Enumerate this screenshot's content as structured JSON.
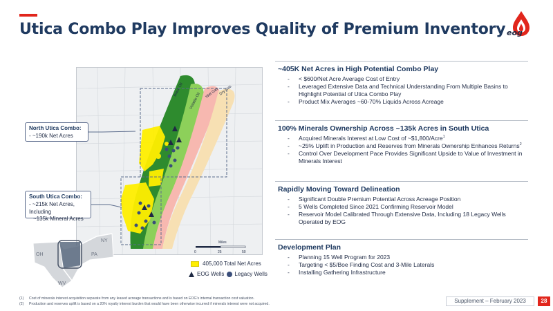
{
  "header": {
    "title": "Utica Combo Play Improves Quality of Premium Inventory",
    "logo_text": "eog",
    "logo_icon": "eog-drop-flame-icon",
    "accent_color": "#e1261c"
  },
  "map": {
    "window_labels": [
      "Black Oil",
      "Volatile Oil",
      "Wet Gas",
      "Dry Gas"
    ],
    "scale_label": "Miles",
    "scale_ticks": [
      "0",
      "25",
      "50"
    ],
    "north_callout": {
      "title": "North Utica Combo:",
      "line1": "- ~190k Net Acres"
    },
    "south_callout": {
      "title": "South Utica Combo:",
      "line1": "- ~215k Net Acres, Including",
      "line2": "~135k Mineral Acres"
    },
    "locator_states": [
      "NY",
      "PA",
      "OH",
      "WV"
    ],
    "colors": {
      "black_oil": "#2e8b2e",
      "volatile_oil": "#8dd05a",
      "wet_gas": "#f7b8b0",
      "dry_gas": "#f7e0b3",
      "acreage": "#ffef00"
    }
  },
  "legend": {
    "acres_label": "405,000 Total Net Acres",
    "eog_wells_label": "EOG Wells",
    "legacy_wells_label": "Legacy Wells"
  },
  "sections": [
    {
      "heading": "~405K Net Acres in High Potential Combo Play",
      "bullets": [
        "< $600/Net Acre Average Cost of Entry",
        "Leveraged Extensive Data and Technical Understanding From Multiple Basins to Highlight Potential of Utica Combo Play",
        "Product Mix Averages ~60-70% Liquids Across Acreage"
      ]
    },
    {
      "heading": "100% Minerals Ownership Across ~135k Acres in South Utica",
      "bullets": [
        "Acquired Minerals Interest at Low Cost of ~$1,800/Acre",
        "~25% Uplift in Production and Reserves from Minerals Ownership Enhances Returns",
        "Control Over Development Pace Provides Significant Upside to Value of Investment in Minerals Interest"
      ],
      "superscripts": [
        "1",
        "2"
      ]
    },
    {
      "heading": "Rapidly Moving Toward Delineation",
      "bullets": [
        "Significant Double Premium Potential Across Acreage Position",
        "5 Wells Completed Since 2021 Confirming Reservoir Model",
        "Reservoir Model Calibrated Through Extensive Data, Including 18 Legacy Wells Operated by EOG"
      ]
    },
    {
      "heading": "Development Plan",
      "bullets": [
        "Planning 15 Well Program for 2023",
        "Targeting < $5/Boe Finding Cost and 3-Mile Laterals",
        "Installing Gathering Infrastructure"
      ]
    }
  ],
  "footnotes": [
    {
      "num": "(1)",
      "text": "Cost of minerals interest acquisition separate from any leased acreage transactions and is based on EOG's internal transaction cost valuation."
    },
    {
      "num": "(2)",
      "text": "Production and reserves uplift is based on a 20% royalty interest burden that would have been otherwise incurred if minerals interest were not acquired."
    }
  ],
  "footer": {
    "supplement": "Supplement – February 2023",
    "page_number": "28"
  }
}
